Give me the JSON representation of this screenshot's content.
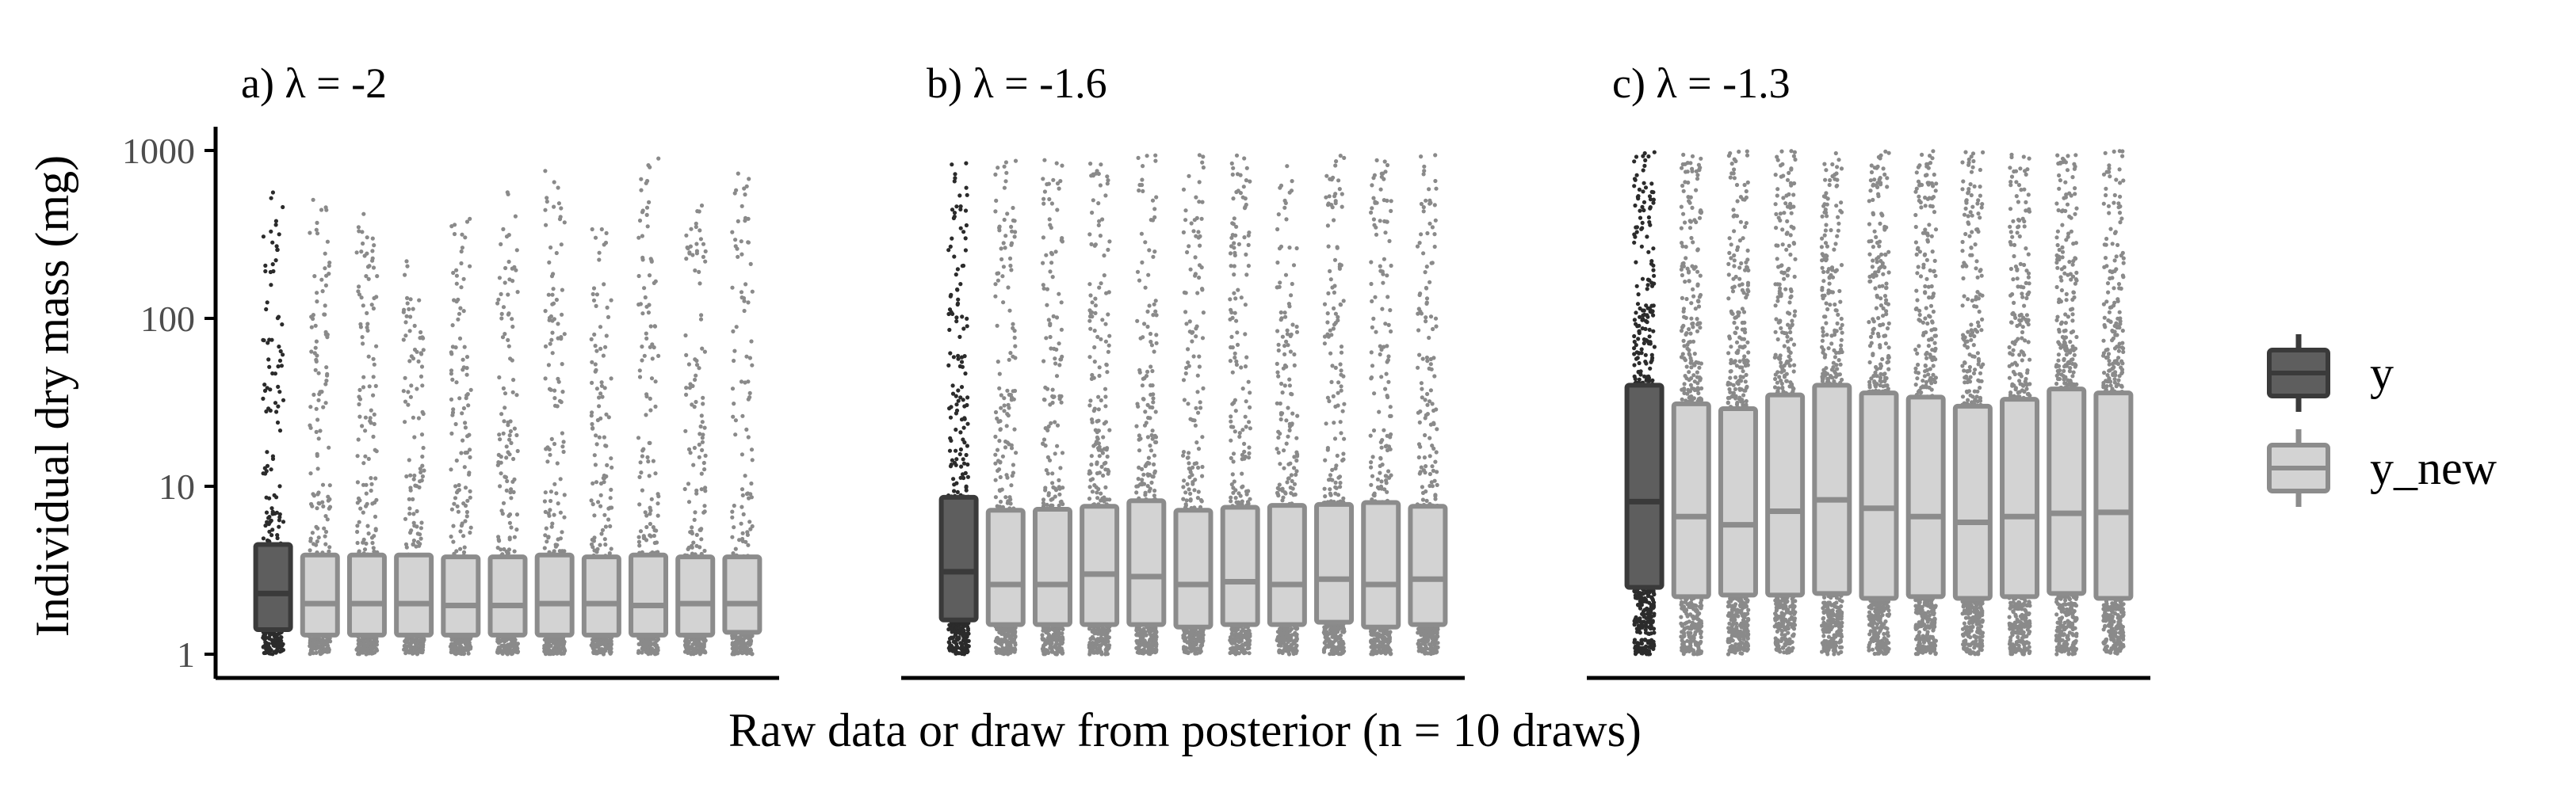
{
  "figure": {
    "ylabel": "Individual dry mass (mg)",
    "xlabel": "Raw data or draw from posterior (n = 10 draws)",
    "y_ticks": [
      "1",
      "10",
      "100",
      "1000"
    ],
    "legend": [
      {
        "label": "y",
        "fill": "#5e5e5e",
        "stroke": "#3a3a3a"
      },
      {
        "label": "y_new",
        "fill": "#d3d3d3",
        "stroke": "#8c8c8c"
      }
    ]
  },
  "chart_data": [
    {
      "type": "box",
      "title": "a) λ = -2",
      "y_scale": "log10",
      "ylim": [
        1,
        1000
      ],
      "boxes": [
        {
          "series": "y",
          "q1": 1.4,
          "median": 2.3,
          "q3": 4.5,
          "max": 650
        },
        {
          "series": "y_new",
          "q1": 1.3,
          "median": 2.0,
          "q3": 3.9,
          "max": 520
        },
        {
          "series": "y_new",
          "q1": 1.3,
          "median": 2.0,
          "q3": 3.9,
          "max": 480
        },
        {
          "series": "y_new",
          "q1": 1.3,
          "median": 2.0,
          "q3": 3.9,
          "max": 220
        },
        {
          "series": "y_new",
          "q1": 1.3,
          "median": 1.95,
          "q3": 3.8,
          "max": 400
        },
        {
          "series": "y_new",
          "q1": 1.3,
          "median": 1.95,
          "q3": 3.8,
          "max": 600
        },
        {
          "series": "y_new",
          "q1": 1.3,
          "median": 2.0,
          "q3": 3.9,
          "max": 880
        },
        {
          "series": "y_new",
          "q1": 1.3,
          "median": 2.0,
          "q3": 3.8,
          "max": 450
        },
        {
          "series": "y_new",
          "q1": 1.3,
          "median": 1.95,
          "q3": 3.9,
          "max": 950
        },
        {
          "series": "y_new",
          "q1": 1.3,
          "median": 2.0,
          "q3": 3.8,
          "max": 480
        },
        {
          "series": "y_new",
          "q1": 1.35,
          "median": 2.0,
          "q3": 3.8,
          "max": 800
        }
      ]
    },
    {
      "type": "box",
      "title": "b) λ = -1.6",
      "y_scale": "log10",
      "ylim": [
        1,
        1000
      ],
      "boxes": [
        {
          "series": "y",
          "q1": 1.6,
          "median": 3.1,
          "q3": 8.6,
          "max": 850
        },
        {
          "series": "y_new",
          "q1": 1.5,
          "median": 2.6,
          "q3": 7.2,
          "max": 900
        },
        {
          "series": "y_new",
          "q1": 1.5,
          "median": 2.6,
          "q3": 7.3,
          "max": 950
        },
        {
          "series": "y_new",
          "q1": 1.5,
          "median": 3.0,
          "q3": 7.6,
          "max": 920
        },
        {
          "series": "y_new",
          "q1": 1.5,
          "median": 2.9,
          "q3": 8.2,
          "max": 950
        },
        {
          "series": "y_new",
          "q1": 1.45,
          "median": 2.6,
          "q3": 7.2,
          "max": 950
        },
        {
          "series": "y_new",
          "q1": 1.5,
          "median": 2.7,
          "q3": 7.5,
          "max": 950
        },
        {
          "series": "y_new",
          "q1": 1.5,
          "median": 2.6,
          "q3": 7.7,
          "max": 920
        },
        {
          "series": "y_new",
          "q1": 1.55,
          "median": 2.8,
          "q3": 7.8,
          "max": 950
        },
        {
          "series": "y_new",
          "q1": 1.45,
          "median": 2.6,
          "q3": 8.0,
          "max": 950
        },
        {
          "series": "y_new",
          "q1": 1.5,
          "median": 2.8,
          "q3": 7.6,
          "max": 950
        }
      ]
    },
    {
      "type": "box",
      "title": "c) λ = -1.3",
      "y_scale": "log10",
      "ylim": [
        1,
        1000
      ],
      "boxes": [
        {
          "series": "y",
          "q1": 2.5,
          "median": 8.1,
          "q3": 40,
          "max": 1000
        },
        {
          "series": "y_new",
          "q1": 2.2,
          "median": 6.6,
          "q3": 31,
          "max": 1000
        },
        {
          "series": "y_new",
          "q1": 2.25,
          "median": 5.9,
          "q3": 29,
          "max": 1000
        },
        {
          "series": "y_new",
          "q1": 2.25,
          "median": 7.1,
          "q3": 35,
          "max": 1000
        },
        {
          "series": "y_new",
          "q1": 2.3,
          "median": 8.3,
          "q3": 40,
          "max": 1000
        },
        {
          "series": "y_new",
          "q1": 2.15,
          "median": 7.4,
          "q3": 36,
          "max": 1000
        },
        {
          "series": "y_new",
          "q1": 2.2,
          "median": 6.6,
          "q3": 34,
          "max": 1000
        },
        {
          "series": "y_new",
          "q1": 2.15,
          "median": 6.1,
          "q3": 30,
          "max": 1000
        },
        {
          "series": "y_new",
          "q1": 2.2,
          "median": 6.6,
          "q3": 33,
          "max": 1000
        },
        {
          "series": "y_new",
          "q1": 2.3,
          "median": 6.9,
          "q3": 38,
          "max": 1000
        },
        {
          "series": "y_new",
          "q1": 2.15,
          "median": 7.0,
          "q3": 36,
          "max": 1000
        }
      ]
    }
  ]
}
